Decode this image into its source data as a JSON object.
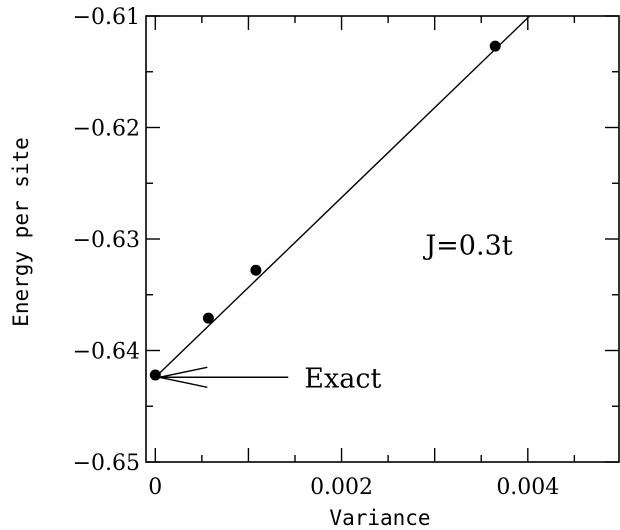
{
  "chart_data": {
    "type": "scatter",
    "title": "",
    "xlabel": "Variance",
    "ylabel": "Energy per site",
    "xlim": [
      -0.0001,
      0.00499
    ],
    "ylim": [
      -0.65,
      -0.61
    ],
    "x_ticks": [
      {
        "value": 0,
        "label": "0"
      },
      {
        "value": 0.002,
        "label": "0.002"
      },
      {
        "value": 0.004,
        "label": "0.004"
      }
    ],
    "y_ticks": [
      {
        "value": -0.61,
        "label": "−0.61"
      },
      {
        "value": -0.62,
        "label": "−0.62"
      },
      {
        "value": -0.63,
        "label": "−0.63"
      },
      {
        "value": -0.64,
        "label": "−0.64"
      },
      {
        "value": -0.65,
        "label": "−0.65"
      }
    ],
    "grid": false,
    "series": [
      {
        "points": [
          {
            "x": 0.0,
            "y": -0.6422
          },
          {
            "x": 0.00057,
            "y": -0.6371
          },
          {
            "x": 0.00108,
            "y": -0.6328
          },
          {
            "x": 0.00365,
            "y": -0.6127
          }
        ]
      }
    ],
    "fit_line": {
      "x0": 0.0,
      "y0": -0.6424,
      "x1": 0.00402,
      "y1": -0.61
    },
    "annotations": [
      {
        "text": "J=0.3t",
        "x": 0.0029,
        "y": -0.6305
      },
      {
        "text": "Exact",
        "arrow_to": {
          "x": 0.0,
          "y": -0.6424
        },
        "x": 0.0016,
        "y": -0.6425
      }
    ]
  }
}
